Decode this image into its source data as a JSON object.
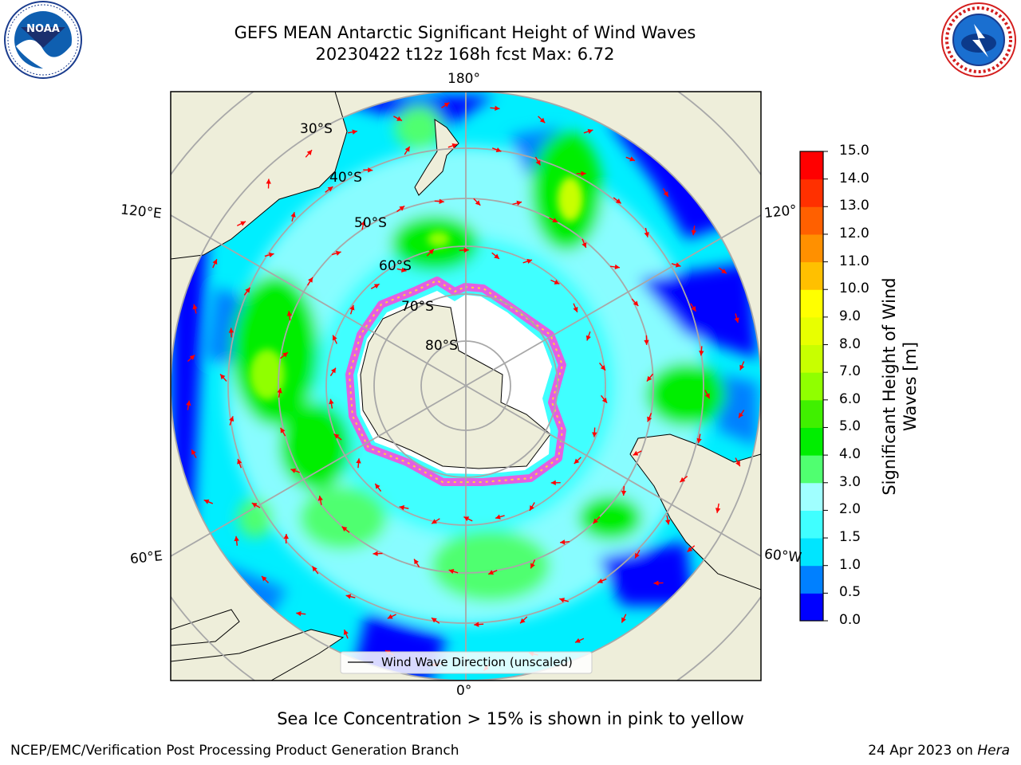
{
  "title": {
    "line1": "GEFS MEAN Antarctic Significant Height of Wind Waves",
    "line2": "20230422 t12z 168h fcst   Max: 6.72"
  },
  "logos": {
    "left": "NOAA",
    "right": "NATIONAL WEATHER SERVICE"
  },
  "map": {
    "projection": "south-polar-stereographic",
    "longitude_labels": {
      "top": "180°",
      "bottom": "0°",
      "left_upper": "120°E",
      "left_lower": "60°E",
      "right_upper": "120°",
      "right_lower": "60°W"
    },
    "latitude_labels": [
      "30°S",
      "40°S",
      "50°S",
      "60°S",
      "70°S",
      "80°S"
    ],
    "legend": "Wind Wave Direction (unscaled)",
    "colors": {
      "ocean_base": "#00ffff",
      "land": "#eeeeda",
      "ice_edge": "#ff44dd",
      "arrows": "#ff0000",
      "grid": "#a8a8a8"
    }
  },
  "colorbar": {
    "label": "Significant Height of Wind Waves [m]",
    "ticks": [
      "0.0",
      "0.5",
      "1.0",
      "1.5",
      "2.0",
      "3.0",
      "4.0",
      "5.0",
      "6.0",
      "7.0",
      "8.0",
      "9.0",
      "10.0",
      "11.0",
      "12.0",
      "13.0",
      "14.0",
      "15.0"
    ],
    "colors": [
      "#0000ff",
      "#0080ff",
      "#00e5ff",
      "#40ffff",
      "#a0ffff",
      "#50ff70",
      "#00ee00",
      "#40f000",
      "#90ff00",
      "#c8ff00",
      "#e8ff00",
      "#ffff00",
      "#ffc000",
      "#ff9000",
      "#ff6000",
      "#ff3000",
      "#ff0000"
    ]
  },
  "footer": {
    "note": "Sea Ice Concentration > 15% is shown in pink to yellow",
    "credit_left": "NCEP/EMC/Verification Post Processing Product Generation Branch",
    "credit_date": "24 Apr 2023 on ",
    "credit_machine": "Hera"
  }
}
